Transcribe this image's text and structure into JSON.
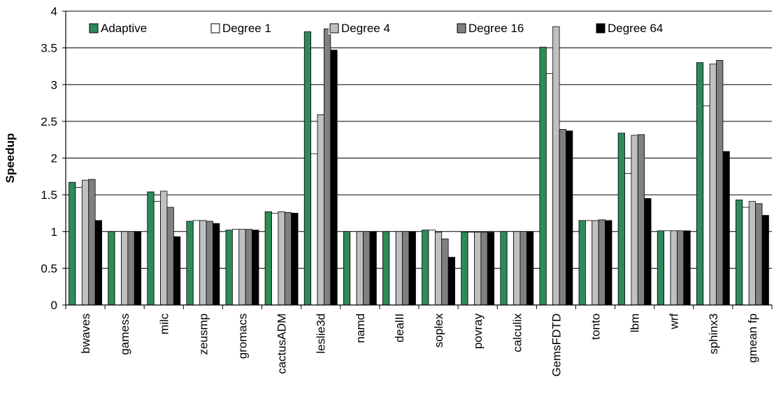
{
  "chart_data": {
    "type": "bar",
    "title": "",
    "xlabel": "",
    "ylabel": "Speedup",
    "ylim": [
      0,
      4
    ],
    "yticks": [
      "0",
      "0.5",
      "1",
      "1.5",
      "2",
      "2.5",
      "3",
      "3.5",
      "4"
    ],
    "grid": "horizontal",
    "legend_position": "top",
    "categories": [
      "bwaves",
      "gamess",
      "milc",
      "zeusmp",
      "gromacs",
      "cactusADM",
      "leslie3d",
      "namd",
      "dealII",
      "soplex",
      "povray",
      "calculix",
      "GemsFDTD",
      "tonto",
      "lbm",
      "wrf",
      "sphinx3",
      "gmean fp"
    ],
    "series": [
      {
        "name": "Adaptive",
        "color": "#2e8b57",
        "values": [
          1.67,
          1.0,
          1.54,
          1.14,
          1.02,
          1.27,
          3.72,
          1.0,
          1.0,
          1.02,
          0.99,
          1.0,
          3.51,
          1.15,
          2.34,
          1.01,
          3.3,
          1.43
        ]
      },
      {
        "name": "Degree 1",
        "color": "#ffffff",
        "values": [
          1.6,
          1.0,
          1.41,
          1.15,
          1.03,
          1.25,
          2.06,
          1.0,
          1.0,
          1.02,
          0.99,
          1.0,
          3.15,
          1.15,
          1.79,
          1.01,
          2.71,
          1.33
        ]
      },
      {
        "name": "Degree 4",
        "color": "#c0c0c0",
        "values": [
          1.7,
          1.0,
          1.55,
          1.15,
          1.03,
          1.27,
          2.59,
          1.0,
          1.0,
          0.99,
          0.99,
          1.0,
          3.79,
          1.15,
          2.31,
          1.01,
          3.28,
          1.41
        ]
      },
      {
        "name": "Degree 16",
        "color": "#808080",
        "values": [
          1.71,
          1.0,
          1.33,
          1.14,
          1.03,
          1.26,
          3.76,
          1.0,
          1.0,
          0.9,
          0.99,
          1.0,
          2.39,
          1.16,
          2.32,
          1.01,
          3.33,
          1.38
        ]
      },
      {
        "name": "Degree 64",
        "color": "#000000",
        "values": [
          1.15,
          1.0,
          0.93,
          1.11,
          1.02,
          1.25,
          3.47,
          1.0,
          1.0,
          0.65,
          0.99,
          1.0,
          2.37,
          1.15,
          1.45,
          1.01,
          2.09,
          1.22
        ]
      }
    ]
  }
}
